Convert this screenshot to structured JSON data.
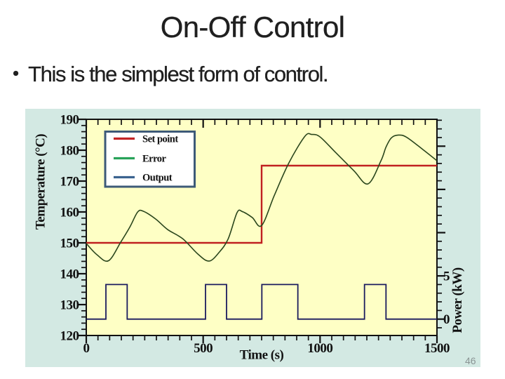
{
  "slide": {
    "title": "On-Off Control",
    "bullet_marker": "•",
    "bullet_text": "This is the simplest form of control.",
    "page_number": "46"
  },
  "colors": {
    "slide_bg": "#ffffff",
    "text": "#1f1f1f",
    "panel_bg": "#d3e9e3",
    "plot_bg": "#feffc5",
    "axis": "#111111",
    "set_point_line": "#c02020",
    "error_line": "#2a461c",
    "output_line": "#1b1b5e",
    "legend_border": "#3d5a78",
    "legend_bg": "#ffffff",
    "legend_swatch_set_point": "#c32525",
    "legend_swatch_error": "#28a259",
    "legend_swatch_output": "#3b6390",
    "page_number": "#8a9494"
  },
  "chart_data": {
    "type": "line",
    "title": "",
    "xlabel": "Time (s)",
    "ylabel_left": "Temperature (°C)",
    "ylabel_right": "Power (kW)",
    "x_range": [
      0,
      1500
    ],
    "y_left_range": [
      120,
      190
    ],
    "x_major_ticks": [
      0,
      500,
      1000,
      1500
    ],
    "x_minor_step": 50,
    "y_left_major_ticks": [
      120,
      130,
      140,
      150,
      160,
      170,
      180,
      190
    ],
    "y_left_minor_step": 2,
    "y_right_labeled_ticks": [
      0,
      5
    ],
    "y_right_minor_step_kw": 1,
    "y_right_major_step_kw": 5,
    "power_axis_mapping": {
      "kw0_at_temp": 125.3,
      "temp_per_kw": 2.8
    },
    "grid": false,
    "legend": {
      "position": "upper-left",
      "entries": [
        {
          "label": "Set point",
          "color_key": "legend_swatch_set_point"
        },
        {
          "label": "Error",
          "color_key": "legend_swatch_error"
        },
        {
          "label": "Output",
          "color_key": "legend_swatch_output"
        }
      ]
    },
    "series": [
      {
        "name": "Set point",
        "kind": "step",
        "unit": "degC",
        "color_key": "set_point_line",
        "width": 2.4,
        "points": [
          [
            0,
            150
          ],
          [
            750,
            150
          ],
          [
            750,
            175
          ],
          [
            1500,
            175
          ]
        ]
      },
      {
        "name": "Error",
        "kind": "smooth",
        "unit": "degC",
        "color_key": "error_line",
        "width": 1.6,
        "points": [
          [
            0,
            149.8
          ],
          [
            45,
            146.2
          ],
          [
            95,
            144.2
          ],
          [
            148,
            150.3
          ],
          [
            187,
            155.2
          ],
          [
            220,
            160.0
          ],
          [
            245,
            160.2
          ],
          [
            297,
            157.7
          ],
          [
            348,
            154.3
          ],
          [
            413,
            151.3
          ],
          [
            477,
            146.4
          ],
          [
            525,
            144.1
          ],
          [
            568,
            146.9
          ],
          [
            607,
            151.3
          ],
          [
            645,
            159.8
          ],
          [
            668,
            160.1
          ],
          [
            710,
            158.2
          ],
          [
            750,
            155.6
          ],
          [
            804,
            165.3
          ],
          [
            866,
            175.8
          ],
          [
            935,
            184.5
          ],
          [
            965,
            185.1
          ],
          [
            1000,
            184.3
          ],
          [
            1066,
            179.3
          ],
          [
            1144,
            173.4
          ],
          [
            1205,
            169.1
          ],
          [
            1260,
            176.5
          ],
          [
            1282,
            181.0
          ],
          [
            1305,
            184.0
          ],
          [
            1335,
            184.9
          ],
          [
            1370,
            184.2
          ],
          [
            1440,
            180.2
          ],
          [
            1500,
            176.6
          ]
        ]
      },
      {
        "name": "Output",
        "kind": "pulse",
        "unit": "kW",
        "color_key": "output_line",
        "width": 1.8,
        "baseline_kw": 0,
        "pulse_kw": 4,
        "pulses": [
          [
            84,
            175
          ],
          [
            510,
            600
          ],
          [
            751,
            905
          ],
          [
            1190,
            1282
          ]
        ]
      }
    ]
  }
}
